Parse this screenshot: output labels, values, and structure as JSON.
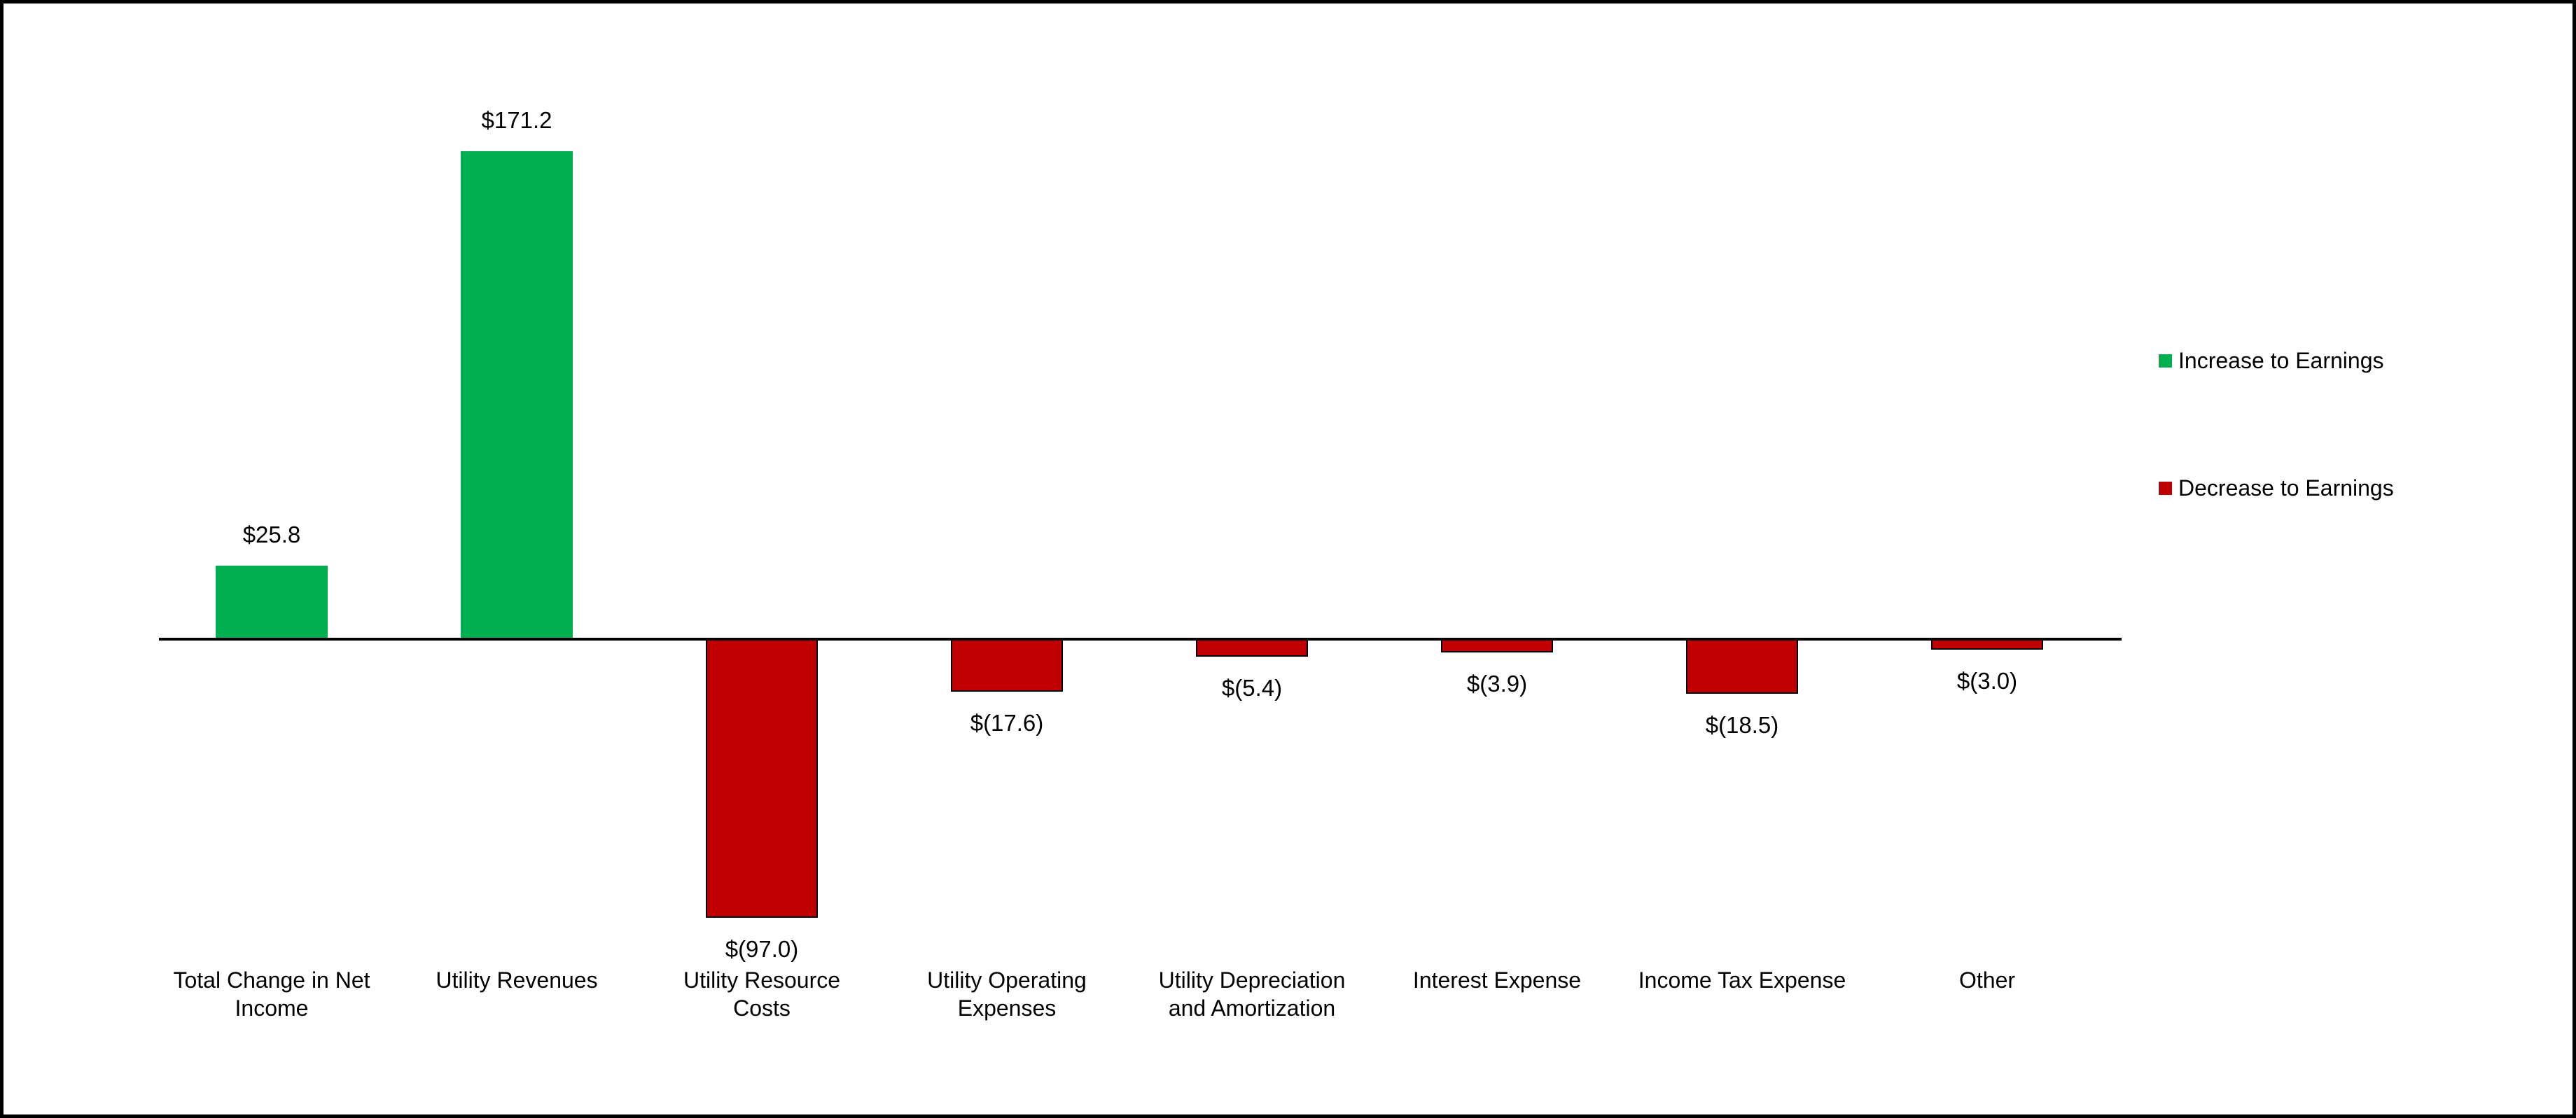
{
  "chart_data": {
    "type": "bar",
    "title": "",
    "xlabel": "",
    "ylabel": "",
    "grid": false,
    "y_axis_visible": false,
    "baseline_value": 0,
    "legend_position": "right",
    "categories": [
      {
        "name": "Total Change in Net Income",
        "lines": [
          "Total Change in Net",
          "Income"
        ]
      },
      {
        "name": "Utility Revenues",
        "lines": [
          "Utility Revenues"
        ]
      },
      {
        "name": "Utility Resource Costs",
        "lines": [
          "Utility Resource",
          "Costs"
        ]
      },
      {
        "name": "Utility Operating Expenses",
        "lines": [
          "Utility Operating",
          "Expenses"
        ]
      },
      {
        "name": "Utility Depreciation and Amortization",
        "lines": [
          "Utility Depreciation",
          "and Amortization"
        ]
      },
      {
        "name": "Interest Expense",
        "lines": [
          "Interest Expense"
        ]
      },
      {
        "name": "Income Tax Expense",
        "lines": [
          "Income Tax Expense"
        ]
      },
      {
        "name": "Other",
        "lines": [
          "Other"
        ]
      }
    ],
    "values": [
      25.8,
      171.2,
      -97.0,
      -17.6,
      -5.4,
      -3.9,
      -18.5,
      -3.0
    ],
    "data_labels": [
      "$25.8",
      "$171.2",
      "$(97.0)",
      "$(17.6)",
      "$(5.4)",
      "$(3.9)",
      "$(18.5)",
      "$(3.0)"
    ],
    "series_colors": {
      "increase": "#00B050",
      "decrease": "#C00000"
    },
    "legend": [
      {
        "label": "Increase to Earnings",
        "color": "#00B050"
      },
      {
        "label": "Decrease to Earnings",
        "color": "#C00000"
      }
    ]
  }
}
